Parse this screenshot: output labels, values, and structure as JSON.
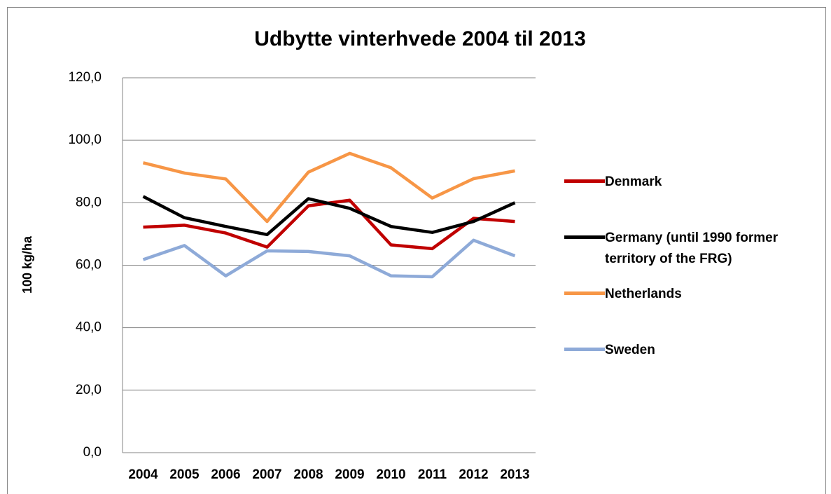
{
  "chart_data": {
    "type": "line",
    "title": "Udbytte vinterhvede 2004 til 2013",
    "y_label": "100 kg/ha",
    "categories": [
      "2004",
      "2005",
      "2006",
      "2007",
      "2008",
      "2009",
      "2010",
      "2011",
      "2012",
      "2013"
    ],
    "series": [
      {
        "name": "Denmark",
        "color": "#c00000",
        "values": [
          72.2,
          72.8,
          70.3,
          65.8,
          79.0,
          80.8,
          66.5,
          65.3,
          75.0,
          74.0
        ]
      },
      {
        "name": "Germany (until 1990 former territory of the FRG)",
        "color": "#000000",
        "values": [
          82.0,
          75.2,
          72.4,
          69.8,
          81.3,
          78.2,
          72.4,
          70.5,
          74.0,
          80.0
        ]
      },
      {
        "name": "Netherlands",
        "color": "#f79646",
        "values": [
          92.8,
          89.5,
          87.6,
          74.0,
          89.8,
          95.8,
          91.2,
          81.5,
          87.7,
          90.2
        ]
      },
      {
        "name": "Sweden",
        "color": "#8eaad8",
        "values": [
          61.8,
          66.3,
          56.6,
          64.6,
          64.4,
          63.0,
          56.6,
          56.3,
          68.0,
          63.0
        ]
      }
    ],
    "ylim": [
      0,
      120
    ],
    "yticks": [
      {
        "value": 0,
        "label": "0,0"
      },
      {
        "value": 20,
        "label": "20,0"
      },
      {
        "value": 40,
        "label": "40,0"
      },
      {
        "value": 60,
        "label": "60,0"
      },
      {
        "value": 80,
        "label": "80,0"
      },
      {
        "value": 100,
        "label": "100,0"
      },
      {
        "value": 120,
        "label": "120,0"
      }
    ],
    "grid": true,
    "legend": "right"
  }
}
